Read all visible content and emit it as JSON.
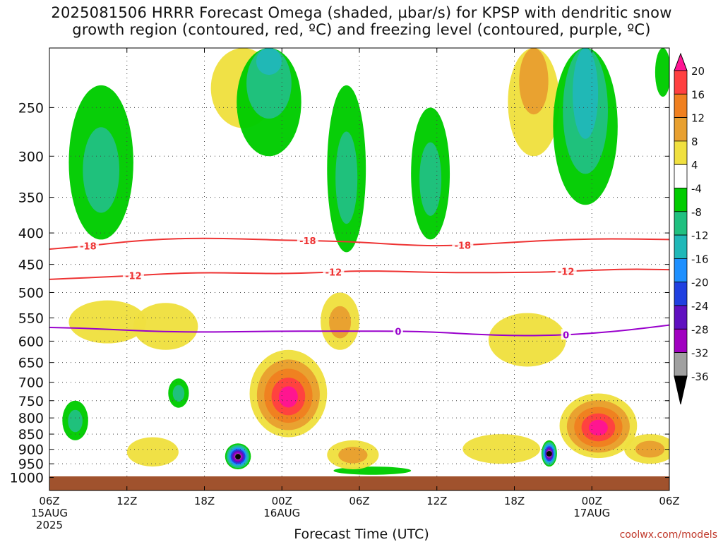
{
  "title_line1": "2025081506 HRRR Forecast Omega (shaded, µbar/s) for KPSP with dendritic snow",
  "title_line2": "growth region (contoured, red, ºC) and freezing level (contoured, purple, ºC)",
  "credit": "coolwx.com/models",
  "chart_data": {
    "type": "heatmap",
    "title": "2025081506 HRRR Forecast Omega (shaded, µbar/s) for KPSP with dendritic snow growth region (contoured, red, ºC) and freezing level (contoured, purple, ºC)",
    "xlabel": "Forecast Time (UTC)",
    "ylabel": "",
    "y_axis": {
      "scale": "log",
      "inverted": true,
      "range": [
        1050,
        200
      ],
      "ticks": [
        250,
        300,
        350,
        400,
        450,
        500,
        550,
        600,
        650,
        700,
        750,
        800,
        850,
        900,
        950,
        1000
      ]
    },
    "x_axis": {
      "range_hours": [
        0,
        48
      ],
      "ticks": [
        {
          "h": 0,
          "label": "06Z",
          "date": "15AUG",
          "year": "2025"
        },
        {
          "h": 6,
          "label": "12Z",
          "date": "",
          "year": ""
        },
        {
          "h": 12,
          "label": "18Z",
          "date": "",
          "year": ""
        },
        {
          "h": 18,
          "label": "00Z",
          "date": "16AUG",
          "year": ""
        },
        {
          "h": 24,
          "label": "06Z",
          "date": "",
          "year": ""
        },
        {
          "h": 30,
          "label": "12Z",
          "date": "",
          "year": ""
        },
        {
          "h": 36,
          "label": "18Z",
          "date": "",
          "year": ""
        },
        {
          "h": 42,
          "label": "00Z",
          "date": "17AUG",
          "year": ""
        },
        {
          "h": 48,
          "label": "06Z",
          "date": "",
          "year": ""
        }
      ]
    },
    "colorbar": {
      "labels": [
        "20",
        "16",
        "12",
        "8",
        "4",
        "-4",
        "-8",
        "-12",
        "-16",
        "-20",
        "-24",
        "-28",
        "-32",
        "-36"
      ],
      "colors": [
        "#ff1493",
        "#ff4040",
        "#f08020",
        "#e8a030",
        "#f0e040",
        "#ffffff",
        "#00cc00",
        "#20c080",
        "#20b8b8",
        "#1e90ff",
        "#2040e0",
        "#6010c0",
        "#a000c0",
        "#a0a0a0",
        "#000000"
      ]
    },
    "ground_color": "#a0522d",
    "contours": [
      {
        "label": "-18",
        "color": "#ee3333",
        "points": [
          [
            0,
            425
          ],
          [
            3,
            420
          ],
          [
            6,
            413
          ],
          [
            9,
            409
          ],
          [
            12,
            408
          ],
          [
            15,
            409
          ],
          [
            18,
            411
          ],
          [
            21,
            412
          ],
          [
            24,
            414
          ],
          [
            27,
            418
          ],
          [
            30,
            420
          ],
          [
            33,
            418
          ],
          [
            36,
            414
          ],
          [
            39,
            411
          ],
          [
            42,
            409
          ],
          [
            45,
            409
          ],
          [
            48,
            410
          ]
        ],
        "label_at": [
          3,
          20,
          32
        ]
      },
      {
        "label": "-12",
        "color": "#ee3333",
        "points": [
          [
            0,
            476
          ],
          [
            3,
            473
          ],
          [
            6,
            470
          ],
          [
            9,
            466
          ],
          [
            12,
            464
          ],
          [
            15,
            465
          ],
          [
            18,
            466
          ],
          [
            21,
            464
          ],
          [
            24,
            461
          ],
          [
            27,
            462
          ],
          [
            30,
            464
          ],
          [
            33,
            464
          ],
          [
            36,
            464
          ],
          [
            39,
            463
          ],
          [
            42,
            460
          ],
          [
            45,
            458
          ],
          [
            48,
            459
          ]
        ],
        "label_at": [
          6.5,
          22,
          40
        ]
      },
      {
        "label": "0",
        "color": "#9900cc",
        "points": [
          [
            0,
            570
          ],
          [
            3,
            572
          ],
          [
            6,
            576
          ],
          [
            9,
            579
          ],
          [
            12,
            580
          ],
          [
            15,
            579
          ],
          [
            18,
            578
          ],
          [
            21,
            578
          ],
          [
            24,
            578
          ],
          [
            27,
            578
          ],
          [
            30,
            580
          ],
          [
            33,
            585
          ],
          [
            36,
            588
          ],
          [
            39,
            587
          ],
          [
            42,
            583
          ],
          [
            45,
            575
          ],
          [
            48,
            565
          ]
        ],
        "label_at": [
          27,
          40
        ]
      }
    ],
    "omega_blobs": [
      {
        "h": 4,
        "p": 320,
        "rh": 2.5,
        "rp": 90,
        "v": -10
      },
      {
        "h": 17,
        "p": 170,
        "rh": 2.5,
        "rp": 130,
        "v": -12
      },
      {
        "h": 23,
        "p": 330,
        "rh": 1.5,
        "rp": 100,
        "v": -10
      },
      {
        "h": 29.5,
        "p": 330,
        "rh": 1.5,
        "rp": 80,
        "v": -10
      },
      {
        "h": 41.5,
        "p": 230,
        "rh": 2.5,
        "rp": 130,
        "v": -15
      },
      {
        "h": 47.5,
        "p": 180,
        "rh": 0.6,
        "rp": 60,
        "v": -6
      },
      {
        "h": 15,
        "p": 200,
        "rh": 2.5,
        "rp": 70,
        "v": 6
      },
      {
        "h": 37.5,
        "p": 200,
        "rh": 2,
        "rp": 100,
        "v": 10
      },
      {
        "h": 4.5,
        "p": 560,
        "rh": 3,
        "rp": 45,
        "v": 7
      },
      {
        "h": 22.5,
        "p": 560,
        "rh": 1.5,
        "rp": 60,
        "v": 10
      },
      {
        "h": 18.5,
        "p": 740,
        "rh": 3,
        "rp": 120,
        "v": 20
      },
      {
        "h": 42.5,
        "p": 830,
        "rh": 3,
        "rp": 100,
        "v": 20
      },
      {
        "h": 23.5,
        "p": 920,
        "rh": 2,
        "rp": 50,
        "v": 10
      },
      {
        "h": 8,
        "p": 910,
        "rh": 2,
        "rp": 50,
        "v": 6
      },
      {
        "h": 46.5,
        "p": 900,
        "rh": 2,
        "rp": 50,
        "v": 8
      },
      {
        "h": 9,
        "p": 570,
        "rh": 2.5,
        "rp": 50,
        "v": 5
      },
      {
        "h": 37,
        "p": 600,
        "rh": 3,
        "rp": 60,
        "v": 5
      },
      {
        "h": 35,
        "p": 900,
        "rh": 3,
        "rp": 50,
        "v": 6
      },
      {
        "h": 14.6,
        "p": 925,
        "rh": 1,
        "rp": 45,
        "v": -36
      },
      {
        "h": 38.7,
        "p": 915,
        "rh": 0.6,
        "rp": 45,
        "v": -36
      },
      {
        "h": 2,
        "p": 810,
        "rh": 1,
        "rp": 60,
        "v": -8
      },
      {
        "h": 10,
        "p": 730,
        "rh": 0.8,
        "rp": 40,
        "v": -8
      },
      {
        "h": 25,
        "p": 975,
        "rh": 3,
        "rp": 15,
        "v": -6
      }
    ]
  }
}
